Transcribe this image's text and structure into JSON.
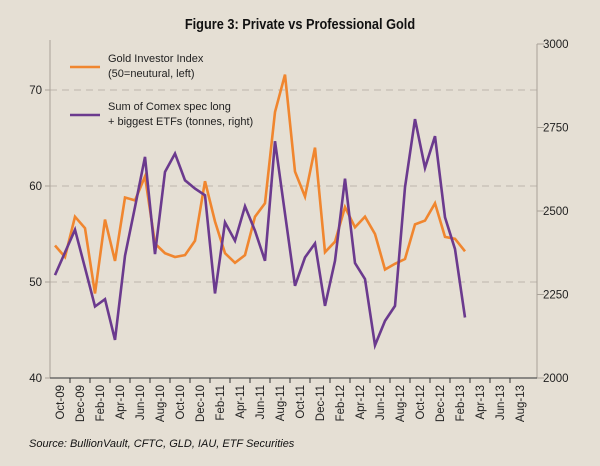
{
  "chart_data": {
    "type": "line",
    "title": "Figure 3: Private vs Professional Gold",
    "source": "Source: BullionVault, CFTC, GLD, IAU, ETF Securities",
    "xlabel": "",
    "x_tick_labels": [
      "Oct-09",
      "Dec-09",
      "Feb-10",
      "Apr-10",
      "Jun-10",
      "Aug-10",
      "Oct-10",
      "Dec-10",
      "Feb-11",
      "Apr-11",
      "Jun-11",
      "Aug-11",
      "Oct-11",
      "Dec-11",
      "Feb-12",
      "Apr-12",
      "Jun-12",
      "Aug-12",
      "Oct-12",
      "Dec-12",
      "Feb-13",
      "Apr-13",
      "Jun-13",
      "Aug-13"
    ],
    "x_start": "Oct-09",
    "x_interval": "monthly",
    "y_left": {
      "label": "Gold Investor Index",
      "ylim": [
        40,
        75
      ],
      "ticks": [
        40,
        50,
        60,
        70
      ]
    },
    "y_right": {
      "label": "Tonnes",
      "ylim": [
        2000,
        3000
      ],
      "ticks": [
        2000,
        2250,
        2500,
        2750,
        3000
      ]
    },
    "grid": "horizontal dashed",
    "legend_position": "top-left",
    "series": [
      {
        "name": "Gold Investor Index",
        "legend_lines": [
          "Gold Investor Index",
          "(50=neutural, left)"
        ],
        "axis": "left",
        "color": "#f0862f",
        "values": [
          53.8,
          52.6,
          56.8,
          55.6,
          48.8,
          56.5,
          52.2,
          58.8,
          58.5,
          61.0,
          54.0,
          53.0,
          52.6,
          52.8,
          54.3,
          60.5,
          56.3,
          53.0,
          52.0,
          52.8,
          56.8,
          58.2,
          67.7,
          71.6,
          61.5,
          58.9,
          64.0,
          53.1,
          54.2,
          57.8,
          55.7,
          56.8,
          55.0,
          51.3,
          51.9,
          52.4,
          56.0,
          56.4,
          58.2,
          54.7,
          54.5,
          53.2
        ]
      },
      {
        "name": "Sum of Comex spec long + biggest ETFs (tonnes, right)",
        "legend_lines": [
          "Sum of Comex spec long",
          "+ biggest ETFs (tonnes, right)"
        ],
        "axis": "right",
        "color": "#6b3a8e",
        "values": [
          2308,
          2376,
          2444,
          2330,
          2214,
          2236,
          2114,
          2366,
          2512,
          2662,
          2371,
          2617,
          2672,
          2592,
          2567,
          2547,
          2253,
          2466,
          2411,
          2514,
          2441,
          2351,
          2709,
          2492,
          2276,
          2361,
          2403,
          2216,
          2351,
          2597,
          2344,
          2296,
          2098,
          2171,
          2216,
          2571,
          2775,
          2629,
          2724,
          2481,
          2386,
          2181
        ]
      }
    ]
  }
}
